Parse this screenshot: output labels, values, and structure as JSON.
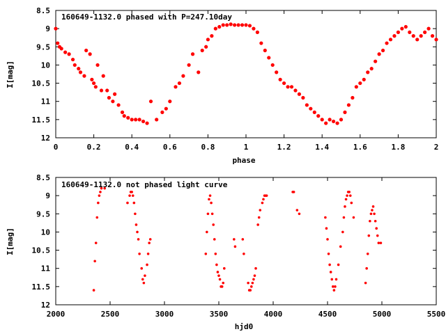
{
  "chart_data": [
    {
      "type": "scatter",
      "title": "160649-1132.0 phased with P=247.10day",
      "xlabel": "phase",
      "ylabel": "I[mag]",
      "xlim": [
        0,
        2
      ],
      "ylim": [
        12,
        8.5
      ],
      "y_inverted": true,
      "x_ticks": [
        "0",
        "0.2",
        "0.4",
        "0.6",
        "0.8",
        "1",
        "1.2",
        "1.4",
        "1.6",
        "1.8",
        "2"
      ],
      "y_ticks": [
        "8.5",
        "9",
        "9.5",
        "10",
        "10.5",
        "11",
        "11.5",
        "12"
      ],
      "marker_color": "#ff0000",
      "series": [
        {
          "x": [
            0.0,
            0.01,
            0.02,
            0.03,
            0.05,
            0.07,
            0.09,
            0.1,
            0.12,
            0.13,
            0.15,
            0.16,
            0.18,
            0.19,
            0.2,
            0.21,
            0.22,
            0.24,
            0.25,
            0.27,
            0.28,
            0.3,
            0.31,
            0.33,
            0.35,
            0.36,
            0.38,
            0.4,
            0.42,
            0.44,
            0.46,
            0.48,
            0.5,
            0.53,
            0.56,
            0.58,
            0.6,
            0.63,
            0.65,
            0.67,
            0.7,
            0.72,
            0.75,
            0.77,
            0.79,
            0.8,
            0.82,
            0.84,
            0.86,
            0.88,
            0.9,
            0.92,
            0.94,
            0.96,
            0.98,
            1.0,
            1.02,
            1.04,
            1.06,
            1.08,
            1.1,
            1.12,
            1.14,
            1.16,
            1.18,
            1.2,
            1.22,
            1.24,
            1.26,
            1.28,
            1.3,
            1.32,
            1.34,
            1.36,
            1.38,
            1.4,
            1.42,
            1.44,
            1.46,
            1.48,
            1.5,
            1.52,
            1.54,
            1.56,
            1.58,
            1.6,
            1.62,
            1.64,
            1.66,
            1.68,
            1.7,
            1.72,
            1.74,
            1.76,
            1.78,
            1.8,
            1.82,
            1.84,
            1.86,
            1.88,
            1.9,
            1.92,
            1.94,
            1.96,
            1.98,
            2.0
          ],
          "y": [
            9.0,
            9.4,
            9.5,
            9.55,
            9.65,
            9.7,
            9.85,
            10.0,
            10.1,
            10.2,
            10.3,
            9.6,
            9.7,
            10.4,
            10.5,
            10.6,
            10.0,
            10.7,
            10.3,
            10.7,
            10.9,
            11.0,
            10.8,
            11.1,
            11.3,
            11.4,
            11.45,
            11.5,
            11.5,
            11.5,
            11.55,
            11.6,
            11.0,
            11.5,
            11.3,
            11.2,
            11.0,
            10.6,
            10.5,
            10.3,
            10.0,
            9.7,
            10.2,
            9.6,
            9.5,
            9.3,
            9.2,
            9.0,
            8.95,
            8.9,
            8.9,
            8.88,
            8.9,
            8.9,
            8.9,
            8.9,
            8.92,
            9.0,
            9.1,
            9.4,
            9.6,
            9.8,
            10.0,
            10.2,
            10.4,
            10.5,
            10.6,
            10.6,
            10.7,
            10.8,
            10.9,
            11.1,
            11.2,
            11.3,
            11.4,
            11.5,
            11.6,
            11.5,
            11.55,
            11.6,
            11.5,
            11.3,
            11.1,
            10.9,
            10.6,
            10.5,
            10.4,
            10.2,
            10.1,
            9.9,
            9.7,
            9.6,
            9.4,
            9.3,
            9.2,
            9.1,
            9.0,
            8.95,
            9.1,
            9.2,
            9.3,
            9.2,
            9.1,
            9.0,
            9.2,
            9.3
          ]
        }
      ]
    },
    {
      "type": "scatter",
      "title": "160649-1132.0 not phased light curve",
      "xlabel": "hjd0",
      "ylabel": "I[mag]",
      "xlim": [
        2000,
        5500
      ],
      "ylim": [
        12,
        8.5
      ],
      "y_inverted": true,
      "x_ticks": [
        "2000",
        "2500",
        "3000",
        "3500",
        "4000",
        "4500",
        "5000",
        "5500"
      ],
      "y_ticks": [
        "8.5",
        "9",
        "9.5",
        "10",
        "10.5",
        "11",
        "11.5",
        "12"
      ],
      "marker_color": "#ff0000",
      "series": [
        {
          "x": [
            2350,
            2360,
            2370,
            2380,
            2390,
            2400,
            2410,
            2420,
            2450,
            2660,
            2680,
            2690,
            2700,
            2710,
            2720,
            2730,
            2740,
            2750,
            2760,
            2770,
            2790,
            2800,
            2810,
            2820,
            2840,
            2850,
            2860,
            2870,
            3380,
            3390,
            3400,
            3410,
            3420,
            3430,
            3440,
            3450,
            3460,
            3470,
            3480,
            3490,
            3500,
            3510,
            3520,
            3530,
            3540,
            3550,
            3640,
            3650,
            3720,
            3730,
            3770,
            3780,
            3790,
            3800,
            3810,
            3820,
            3830,
            3840,
            3860,
            3870,
            3880,
            3900,
            3910,
            3920,
            3930,
            3940,
            4180,
            4190,
            4220,
            4240,
            4480,
            4490,
            4500,
            4510,
            4520,
            4530,
            4540,
            4550,
            4560,
            4570,
            4580,
            4600,
            4620,
            4640,
            4650,
            4660,
            4670,
            4680,
            4690,
            4700,
            4710,
            4720,
            4740,
            4850,
            4860,
            4870,
            4880,
            4890,
            4900,
            4910,
            4920,
            4930,
            4940,
            4950,
            4960,
            4970,
            4990
          ],
          "y": [
            11.6,
            10.8,
            10.3,
            9.6,
            9.2,
            9.0,
            8.9,
            8.8,
            8.8,
            9.2,
            9.0,
            8.9,
            8.9,
            9.0,
            9.2,
            9.5,
            9.8,
            10.0,
            10.2,
            10.6,
            11.0,
            11.3,
            11.4,
            11.2,
            10.9,
            10.6,
            10.3,
            10.2,
            10.6,
            10.0,
            9.5,
            9.1,
            9.0,
            9.2,
            9.5,
            9.8,
            10.2,
            10.6,
            10.9,
            11.1,
            11.2,
            11.3,
            11.5,
            11.5,
            11.4,
            11.0,
            10.2,
            10.4,
            10.2,
            10.6,
            11.4,
            11.6,
            11.6,
            11.5,
            11.4,
            11.3,
            11.2,
            11.0,
            9.8,
            9.6,
            9.4,
            9.2,
            9.1,
            9.0,
            9.0,
            9.0,
            8.9,
            8.9,
            9.4,
            9.5,
            9.6,
            9.9,
            10.2,
            10.6,
            10.9,
            11.1,
            11.3,
            11.5,
            11.6,
            11.5,
            11.3,
            10.9,
            10.4,
            10.0,
            9.6,
            9.3,
            9.1,
            9.0,
            8.9,
            8.9,
            9.0,
            9.2,
            9.6,
            11.4,
            11.0,
            10.6,
            10.1,
            9.7,
            9.5,
            9.4,
            9.3,
            9.5,
            9.7,
            9.9,
            10.1,
            10.3,
            10.3
          ]
        }
      ]
    }
  ]
}
